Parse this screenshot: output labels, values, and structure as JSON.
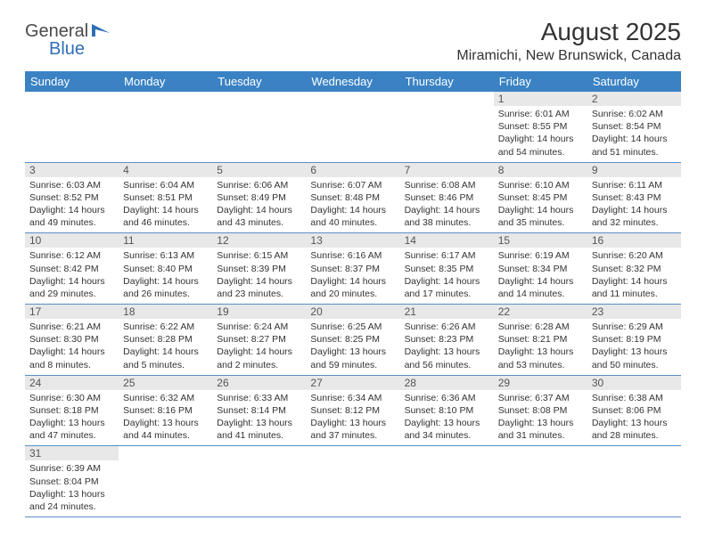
{
  "logo": {
    "part1": "General",
    "part2": "Blue"
  },
  "title": "August 2025",
  "location": "Miramichi, New Brunswick, Canada",
  "colors": {
    "header_bg": "#3a82c4",
    "header_text": "#ffffff",
    "daynum_bg": "#e8e8e8",
    "border": "#5a8fc4",
    "logo_blue": "#2e6fb5"
  },
  "dayNames": [
    "Sunday",
    "Monday",
    "Tuesday",
    "Wednesday",
    "Thursday",
    "Friday",
    "Saturday"
  ],
  "weeks": [
    [
      {
        "n": "",
        "empty": true
      },
      {
        "n": "",
        "empty": true
      },
      {
        "n": "",
        "empty": true
      },
      {
        "n": "",
        "empty": true
      },
      {
        "n": "",
        "empty": true
      },
      {
        "n": "1",
        "sunrise": "Sunrise: 6:01 AM",
        "sunset": "Sunset: 8:55 PM",
        "daylight": "Daylight: 14 hours and 54 minutes."
      },
      {
        "n": "2",
        "sunrise": "Sunrise: 6:02 AM",
        "sunset": "Sunset: 8:54 PM",
        "daylight": "Daylight: 14 hours and 51 minutes."
      }
    ],
    [
      {
        "n": "3",
        "sunrise": "Sunrise: 6:03 AM",
        "sunset": "Sunset: 8:52 PM",
        "daylight": "Daylight: 14 hours and 49 minutes."
      },
      {
        "n": "4",
        "sunrise": "Sunrise: 6:04 AM",
        "sunset": "Sunset: 8:51 PM",
        "daylight": "Daylight: 14 hours and 46 minutes."
      },
      {
        "n": "5",
        "sunrise": "Sunrise: 6:06 AM",
        "sunset": "Sunset: 8:49 PM",
        "daylight": "Daylight: 14 hours and 43 minutes."
      },
      {
        "n": "6",
        "sunrise": "Sunrise: 6:07 AM",
        "sunset": "Sunset: 8:48 PM",
        "daylight": "Daylight: 14 hours and 40 minutes."
      },
      {
        "n": "7",
        "sunrise": "Sunrise: 6:08 AM",
        "sunset": "Sunset: 8:46 PM",
        "daylight": "Daylight: 14 hours and 38 minutes."
      },
      {
        "n": "8",
        "sunrise": "Sunrise: 6:10 AM",
        "sunset": "Sunset: 8:45 PM",
        "daylight": "Daylight: 14 hours and 35 minutes."
      },
      {
        "n": "9",
        "sunrise": "Sunrise: 6:11 AM",
        "sunset": "Sunset: 8:43 PM",
        "daylight": "Daylight: 14 hours and 32 minutes."
      }
    ],
    [
      {
        "n": "10",
        "sunrise": "Sunrise: 6:12 AM",
        "sunset": "Sunset: 8:42 PM",
        "daylight": "Daylight: 14 hours and 29 minutes."
      },
      {
        "n": "11",
        "sunrise": "Sunrise: 6:13 AM",
        "sunset": "Sunset: 8:40 PM",
        "daylight": "Daylight: 14 hours and 26 minutes."
      },
      {
        "n": "12",
        "sunrise": "Sunrise: 6:15 AM",
        "sunset": "Sunset: 8:39 PM",
        "daylight": "Daylight: 14 hours and 23 minutes."
      },
      {
        "n": "13",
        "sunrise": "Sunrise: 6:16 AM",
        "sunset": "Sunset: 8:37 PM",
        "daylight": "Daylight: 14 hours and 20 minutes."
      },
      {
        "n": "14",
        "sunrise": "Sunrise: 6:17 AM",
        "sunset": "Sunset: 8:35 PM",
        "daylight": "Daylight: 14 hours and 17 minutes."
      },
      {
        "n": "15",
        "sunrise": "Sunrise: 6:19 AM",
        "sunset": "Sunset: 8:34 PM",
        "daylight": "Daylight: 14 hours and 14 minutes."
      },
      {
        "n": "16",
        "sunrise": "Sunrise: 6:20 AM",
        "sunset": "Sunset: 8:32 PM",
        "daylight": "Daylight: 14 hours and 11 minutes."
      }
    ],
    [
      {
        "n": "17",
        "sunrise": "Sunrise: 6:21 AM",
        "sunset": "Sunset: 8:30 PM",
        "daylight": "Daylight: 14 hours and 8 minutes."
      },
      {
        "n": "18",
        "sunrise": "Sunrise: 6:22 AM",
        "sunset": "Sunset: 8:28 PM",
        "daylight": "Daylight: 14 hours and 5 minutes."
      },
      {
        "n": "19",
        "sunrise": "Sunrise: 6:24 AM",
        "sunset": "Sunset: 8:27 PM",
        "daylight": "Daylight: 14 hours and 2 minutes."
      },
      {
        "n": "20",
        "sunrise": "Sunrise: 6:25 AM",
        "sunset": "Sunset: 8:25 PM",
        "daylight": "Daylight: 13 hours and 59 minutes."
      },
      {
        "n": "21",
        "sunrise": "Sunrise: 6:26 AM",
        "sunset": "Sunset: 8:23 PM",
        "daylight": "Daylight: 13 hours and 56 minutes."
      },
      {
        "n": "22",
        "sunrise": "Sunrise: 6:28 AM",
        "sunset": "Sunset: 8:21 PM",
        "daylight": "Daylight: 13 hours and 53 minutes."
      },
      {
        "n": "23",
        "sunrise": "Sunrise: 6:29 AM",
        "sunset": "Sunset: 8:19 PM",
        "daylight": "Daylight: 13 hours and 50 minutes."
      }
    ],
    [
      {
        "n": "24",
        "sunrise": "Sunrise: 6:30 AM",
        "sunset": "Sunset: 8:18 PM",
        "daylight": "Daylight: 13 hours and 47 minutes."
      },
      {
        "n": "25",
        "sunrise": "Sunrise: 6:32 AM",
        "sunset": "Sunset: 8:16 PM",
        "daylight": "Daylight: 13 hours and 44 minutes."
      },
      {
        "n": "26",
        "sunrise": "Sunrise: 6:33 AM",
        "sunset": "Sunset: 8:14 PM",
        "daylight": "Daylight: 13 hours and 41 minutes."
      },
      {
        "n": "27",
        "sunrise": "Sunrise: 6:34 AM",
        "sunset": "Sunset: 8:12 PM",
        "daylight": "Daylight: 13 hours and 37 minutes."
      },
      {
        "n": "28",
        "sunrise": "Sunrise: 6:36 AM",
        "sunset": "Sunset: 8:10 PM",
        "daylight": "Daylight: 13 hours and 34 minutes."
      },
      {
        "n": "29",
        "sunrise": "Sunrise: 6:37 AM",
        "sunset": "Sunset: 8:08 PM",
        "daylight": "Daylight: 13 hours and 31 minutes."
      },
      {
        "n": "30",
        "sunrise": "Sunrise: 6:38 AM",
        "sunset": "Sunset: 8:06 PM",
        "daylight": "Daylight: 13 hours and 28 minutes."
      }
    ],
    [
      {
        "n": "31",
        "sunrise": "Sunrise: 6:39 AM",
        "sunset": "Sunset: 8:04 PM",
        "daylight": "Daylight: 13 hours and 24 minutes."
      },
      {
        "n": "",
        "empty": true
      },
      {
        "n": "",
        "empty": true
      },
      {
        "n": "",
        "empty": true
      },
      {
        "n": "",
        "empty": true
      },
      {
        "n": "",
        "empty": true
      },
      {
        "n": "",
        "empty": true
      }
    ]
  ]
}
